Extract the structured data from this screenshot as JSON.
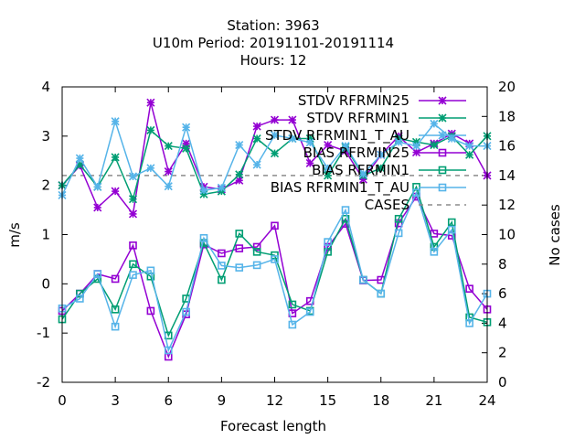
{
  "chart_data": {
    "type": "line",
    "title_lines": [
      "Station:     3963",
      "U10m   Period: 20191101-20191114",
      "Hours:  12"
    ],
    "xlabel": "Forecast length",
    "ylabel": "m/s",
    "y2label": "No cases",
    "xlim": [
      0,
      24
    ],
    "ylim": [
      -2,
      4
    ],
    "y2lim": [
      0,
      20
    ],
    "xticks": [
      0,
      3,
      6,
      9,
      12,
      15,
      18,
      21,
      24
    ],
    "yticks": [
      -2,
      -1,
      0,
      1,
      2,
      3,
      4
    ],
    "y2ticks": [
      0,
      2,
      4,
      6,
      8,
      10,
      12,
      14,
      16,
      18,
      20
    ],
    "x": [
      0,
      1,
      2,
      3,
      4,
      5,
      6,
      7,
      8,
      9,
      10,
      11,
      12,
      13,
      14,
      15,
      16,
      17,
      18,
      19,
      20,
      21,
      22,
      23,
      24
    ],
    "legend_position": "top-right",
    "series": [
      {
        "name": "STDV RFRMIN25",
        "color": "#9400d3",
        "marker": "x-star",
        "values": [
          2.0,
          2.4,
          1.55,
          1.88,
          1.42,
          3.68,
          2.28,
          2.85,
          1.97,
          1.92,
          2.1,
          3.2,
          3.33,
          3.33,
          2.45,
          2.82,
          2.7,
          2.12,
          2.62,
          3.0,
          2.67,
          2.85,
          3.05,
          2.85,
          2.2
        ]
      },
      {
        "name": "STDV RFRMIN1",
        "color": "#009e73",
        "marker": "x-star",
        "values": [
          2.0,
          2.42,
          1.97,
          2.57,
          1.72,
          3.12,
          2.8,
          2.75,
          1.82,
          1.88,
          2.22,
          2.95,
          2.65,
          2.95,
          2.95,
          2.2,
          2.78,
          2.2,
          2.35,
          2.95,
          2.88,
          2.82,
          3.0,
          2.62,
          3.0
        ]
      },
      {
        "name": "STDV RFRMIN1_T_AU",
        "color": "#56b4e9",
        "marker": "x-star",
        "values": [
          1.8,
          2.55,
          1.97,
          3.3,
          2.18,
          2.35,
          1.98,
          3.18,
          1.9,
          1.95,
          2.82,
          2.42,
          3.02,
          2.95,
          2.87,
          2.35,
          2.8,
          2.23,
          2.62,
          2.88,
          2.8,
          3.25,
          2.95,
          2.8,
          2.8
        ]
      },
      {
        "name": "BIAS RFRMIN25",
        "color": "#9400d3",
        "marker": "square",
        "values": [
          -0.55,
          -0.2,
          0.2,
          0.1,
          0.78,
          -0.55,
          -1.48,
          -0.62,
          0.8,
          0.62,
          0.72,
          0.75,
          1.18,
          -0.6,
          -0.35,
          0.75,
          1.22,
          0.07,
          0.08,
          1.23,
          1.77,
          1.02,
          0.98,
          -0.1,
          -0.52
        ]
      },
      {
        "name": "BIAS RFRMIN1",
        "color": "#009e73",
        "marker": "square",
        "values": [
          -0.72,
          -0.2,
          0.1,
          -0.52,
          0.4,
          0.15,
          -1.05,
          -0.3,
          0.83,
          0.08,
          1.02,
          0.65,
          0.58,
          -0.42,
          -0.55,
          0.65,
          1.32,
          0.08,
          -0.2,
          1.32,
          1.97,
          0.75,
          1.25,
          -0.68,
          -0.78
        ]
      },
      {
        "name": "BIAS RFRMIN1_T_AU",
        "color": "#56b4e9",
        "marker": "square",
        "values": [
          -0.5,
          -0.3,
          0.2,
          -0.87,
          0.18,
          0.27,
          -1.35,
          -0.57,
          0.93,
          0.37,
          0.33,
          0.38,
          0.5,
          -0.83,
          -0.57,
          0.85,
          1.5,
          0.08,
          -0.2,
          1.03,
          1.85,
          0.65,
          1.1,
          -0.8,
          -0.2
        ]
      }
    ],
    "cases": {
      "name": "CASES",
      "color": "#8c8c8c",
      "axis": "y2",
      "value": 14
    }
  }
}
